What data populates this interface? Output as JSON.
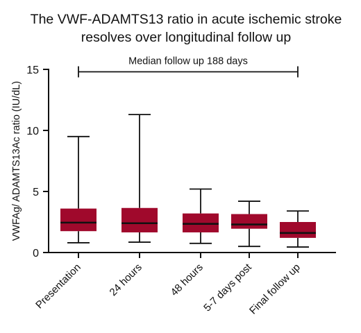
{
  "chart_data": {
    "type": "boxplot",
    "title_lines": [
      "The VWF-ADAMTS13 ratio in acute ischemic stroke",
      "resolves over longitudinal follow up"
    ],
    "ylabel": "VWFAg/ ADAMTS13Ac ratio (IU/dL)",
    "xlabel": "",
    "ylim": [
      0,
      15
    ],
    "yticks": [
      "0",
      "5",
      "10",
      "15"
    ],
    "categories": [
      "Presentation",
      "24 hours",
      "48 hours",
      "5-7 days post",
      "Final follow up"
    ],
    "series": [
      {
        "box_color": "#a0092c",
        "boxes": [
          {
            "min": 0.8,
            "q1": 1.75,
            "median": 2.45,
            "q3": 3.6,
            "max": 9.5
          },
          {
            "min": 0.85,
            "q1": 1.65,
            "median": 2.4,
            "q3": 3.65,
            "max": 11.3
          },
          {
            "min": 0.75,
            "q1": 1.65,
            "median": 2.35,
            "q3": 3.2,
            "max": 5.2
          },
          {
            "min": 0.5,
            "q1": 1.95,
            "median": 2.3,
            "q3": 3.15,
            "max": 4.2
          },
          {
            "min": 0.45,
            "q1": 1.2,
            "median": 1.6,
            "q3": 2.5,
            "max": 3.4
          }
        ]
      }
    ],
    "annotation": {
      "text": "Median follow up 188 days",
      "from_category": "Presentation",
      "to_category": "Final follow up",
      "y": 14.8
    },
    "grid": false
  }
}
